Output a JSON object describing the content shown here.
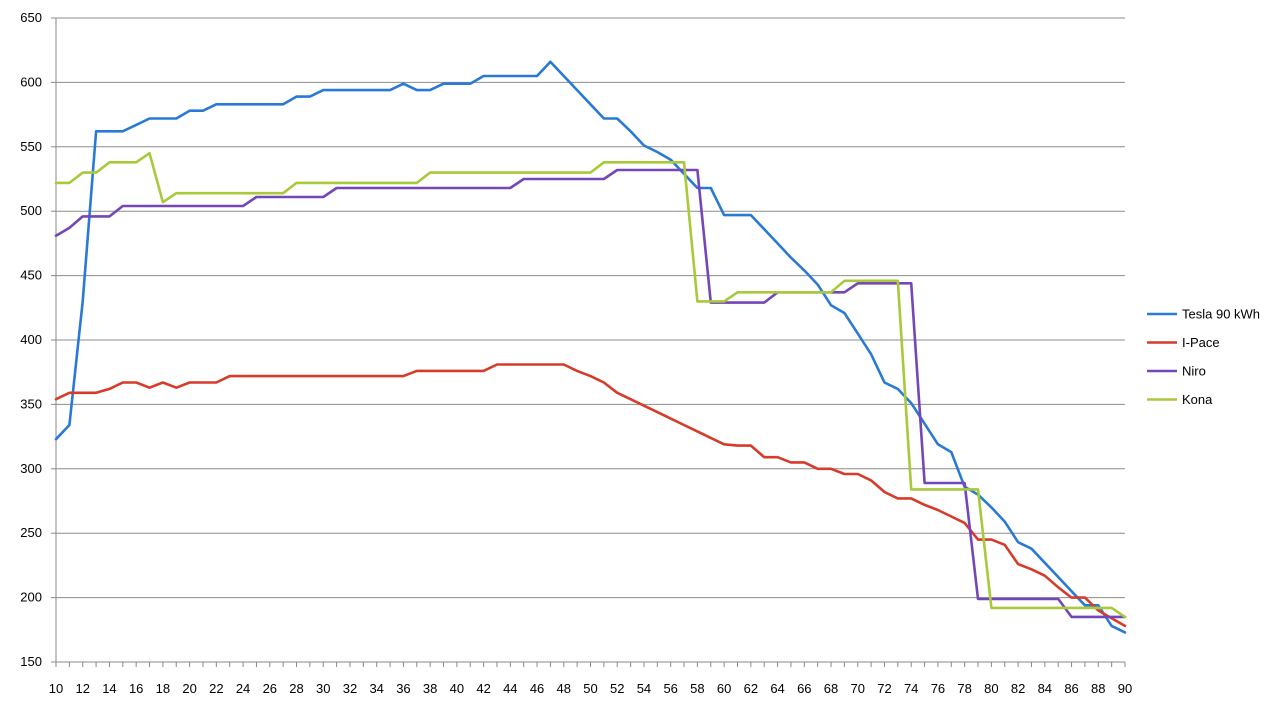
{
  "chart_data": {
    "type": "line",
    "title": "",
    "xlabel": "",
    "ylabel": "",
    "xlim": [
      10,
      90
    ],
    "ylim": [
      150,
      650
    ],
    "x_ticks": [
      10,
      12,
      14,
      16,
      18,
      20,
      22,
      24,
      26,
      28,
      30,
      32,
      34,
      36,
      38,
      40,
      42,
      44,
      46,
      48,
      50,
      52,
      54,
      56,
      58,
      60,
      62,
      64,
      66,
      68,
      70,
      72,
      74,
      76,
      78,
      80,
      82,
      84,
      86,
      88,
      90
    ],
    "y_ticks": [
      150,
      200,
      250,
      300,
      350,
      400,
      450,
      500,
      550,
      600,
      650
    ],
    "grid": "horizontal",
    "legend_position": "right",
    "x": [
      10,
      11,
      12,
      13,
      14,
      15,
      16,
      17,
      18,
      19,
      20,
      21,
      22,
      23,
      24,
      25,
      26,
      27,
      28,
      29,
      30,
      31,
      32,
      33,
      34,
      35,
      36,
      37,
      38,
      39,
      40,
      41,
      42,
      43,
      44,
      45,
      46,
      47,
      48,
      49,
      50,
      51,
      52,
      53,
      54,
      55,
      56,
      57,
      58,
      59,
      60,
      61,
      62,
      63,
      64,
      65,
      66,
      67,
      68,
      69,
      70,
      71,
      72,
      73,
      74,
      75,
      76,
      77,
      78,
      79,
      80,
      81,
      82,
      83,
      84,
      85,
      86,
      87,
      88,
      89,
      90
    ],
    "series": [
      {
        "name": "Tesla 90 kWh",
        "color": "#2a7ad5",
        "values": [
          323,
          334,
          430,
          562,
          562,
          562,
          567,
          572,
          572,
          572,
          578,
          578,
          583,
          583,
          583,
          583,
          583,
          583,
          589,
          589,
          594,
          594,
          594,
          594,
          594,
          594,
          599,
          594,
          594,
          599,
          599,
          599,
          605,
          605,
          605,
          605,
          605,
          616,
          605,
          594,
          583,
          572,
          572,
          562,
          551,
          546,
          540,
          529,
          518,
          518,
          497,
          497,
          497,
          486,
          475,
          464,
          454,
          443,
          427,
          421,
          405,
          389,
          367,
          362,
          351,
          335,
          319,
          313,
          286,
          280,
          270,
          259,
          243,
          238,
          227,
          216,
          205,
          194,
          194,
          178,
          173
        ]
      },
      {
        "name": "I-Pace",
        "color": "#d73b2a",
        "values": [
          354,
          359,
          359,
          359,
          362,
          367,
          367,
          363,
          367,
          363,
          367,
          367,
          367,
          372,
          372,
          372,
          372,
          372,
          372,
          372,
          372,
          372,
          372,
          372,
          372,
          372,
          372,
          376,
          376,
          376,
          376,
          376,
          376,
          381,
          381,
          381,
          381,
          381,
          381,
          376,
          372,
          367,
          359,
          354,
          349,
          344,
          339,
          334,
          329,
          324,
          319,
          318,
          318,
          309,
          309,
          305,
          305,
          300,
          300,
          296,
          296,
          291,
          282,
          277,
          277,
          272,
          268,
          263,
          258,
          245,
          245,
          241,
          226,
          222,
          217,
          208,
          200,
          200,
          190,
          184,
          178
        ]
      },
      {
        "name": "Niro",
        "color": "#7446b8",
        "values": [
          481,
          487,
          496,
          496,
          496,
          504,
          504,
          504,
          504,
          504,
          504,
          504,
          504,
          504,
          504,
          511,
          511,
          511,
          511,
          511,
          511,
          518,
          518,
          518,
          518,
          518,
          518,
          518,
          518,
          518,
          518,
          518,
          518,
          518,
          518,
          525,
          525,
          525,
          525,
          525,
          525,
          525,
          532,
          532,
          532,
          532,
          532,
          532,
          532,
          429,
          429,
          429,
          429,
          429,
          437,
          437,
          437,
          437,
          437,
          437,
          444,
          444,
          444,
          444,
          444,
          289,
          289,
          289,
          289,
          199,
          199,
          199,
          199,
          199,
          199,
          199,
          185,
          185,
          185,
          185,
          185
        ]
      },
      {
        "name": "Kona",
        "color": "#a8c93a",
        "values": [
          522,
          522,
          530,
          530,
          538,
          538,
          538,
          545,
          507,
          514,
          514,
          514,
          514,
          514,
          514,
          514,
          514,
          514,
          522,
          522,
          522,
          522,
          522,
          522,
          522,
          522,
          522,
          522,
          530,
          530,
          530,
          530,
          530,
          530,
          530,
          530,
          530,
          530,
          530,
          530,
          530,
          538,
          538,
          538,
          538,
          538,
          538,
          538,
          430,
          430,
          430,
          437,
          437,
          437,
          437,
          437,
          437,
          437,
          437,
          446,
          446,
          446,
          446,
          446,
          284,
          284,
          284,
          284,
          284,
          284,
          192,
          192,
          192,
          192,
          192,
          192,
          192,
          192,
          192,
          192,
          185
        ]
      }
    ]
  }
}
